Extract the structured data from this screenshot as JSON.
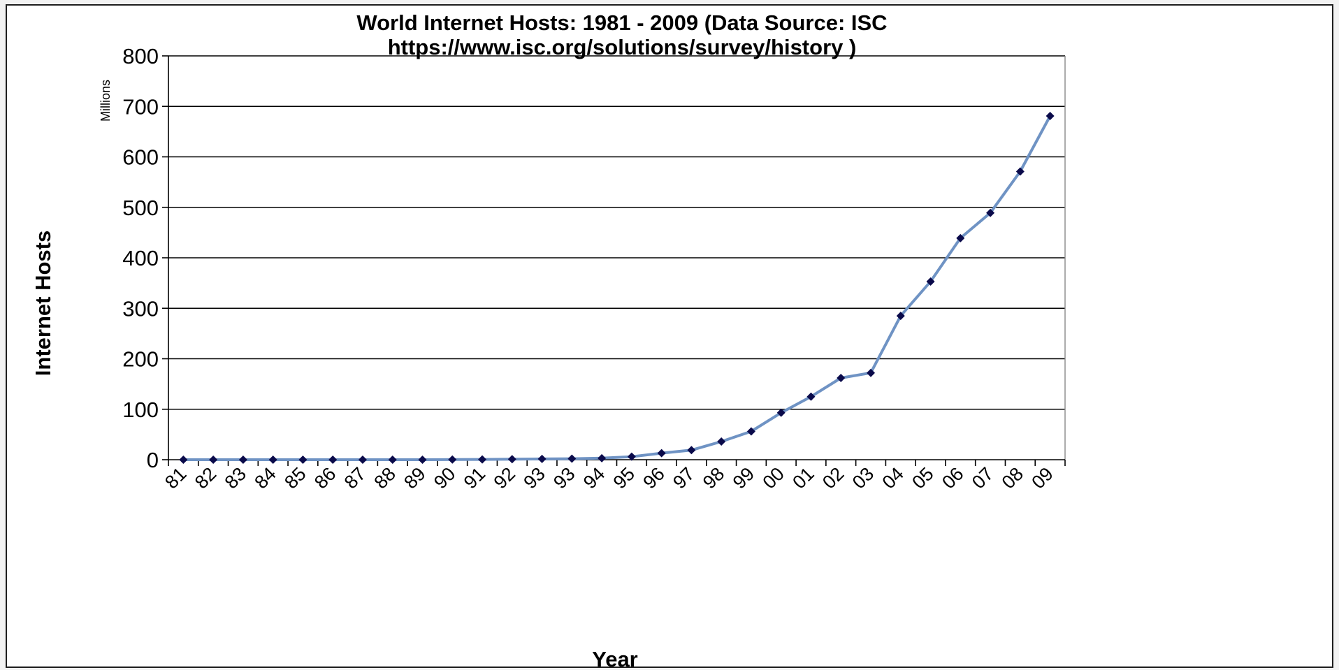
{
  "chart_data": {
    "type": "line",
    "title_line1": "World Internet Hosts: 1981 - 2009 (Data Source: ISC",
    "title_line2": "https://www.isc.org/solutions/survey/history )",
    "xlabel": "Year",
    "ylabel": "Internet Hosts",
    "yunit": "Millions",
    "ylim": [
      0,
      800
    ],
    "yticks": [
      "0",
      "100",
      "200",
      "300",
      "400",
      "500",
      "600",
      "700",
      "800"
    ],
    "categories": [
      "81",
      "82",
      "83",
      "84",
      "85",
      "86",
      "87",
      "88",
      "89",
      "90",
      "91",
      "92",
      "93",
      "93",
      "94",
      "95",
      "96",
      "97",
      "98",
      "99",
      "00",
      "01",
      "02",
      "03",
      "04",
      "05",
      "06",
      "07",
      "08",
      "09"
    ],
    "series": [
      {
        "values": [
          0,
          0,
          0,
          0,
          0,
          0,
          0,
          0,
          0,
          0.3,
          0.5,
          1,
          1.5,
          2,
          3,
          6,
          13,
          19,
          36,
          56,
          93,
          125,
          162,
          172,
          285,
          353,
          439,
          489,
          571,
          681
        ]
      }
    ],
    "grid": true,
    "line_color": "#6f93c4",
    "marker_color": "#0a0a4a",
    "gridline_color": "#000000",
    "legend": "none"
  }
}
